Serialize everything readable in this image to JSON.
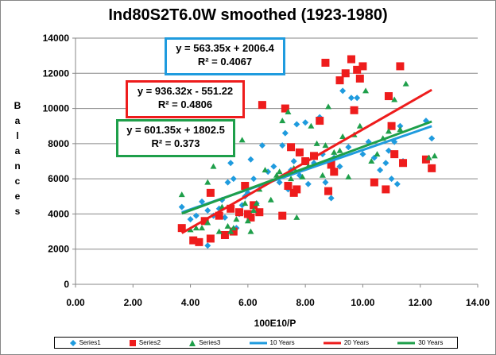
{
  "chart_data": {
    "type": "scatter",
    "title": "Ind80S2T6.0W smoothed (1923-1980)",
    "xlabel": "100E10/P",
    "ylabel": "Balances",
    "xlim": [
      0,
      14
    ],
    "ylim": [
      0,
      14000
    ],
    "x_ticks": [
      "0.00",
      "2.00",
      "4.00",
      "6.00",
      "8.00",
      "10.00",
      "12.00",
      "14.00"
    ],
    "y_ticks": [
      "0",
      "2000",
      "4000",
      "6000",
      "8000",
      "10000",
      "12000",
      "14000"
    ],
    "grid": true,
    "legend": "bottom",
    "series": [
      {
        "name": "Series1",
        "marker": "diamond",
        "color": "#1f9bde",
        "points": [
          [
            3.7,
            4400
          ],
          [
            4.0,
            3700
          ],
          [
            4.2,
            3900
          ],
          [
            4.4,
            4700
          ],
          [
            4.6,
            4200
          ],
          [
            4.8,
            3900
          ],
          [
            5.0,
            4300
          ],
          [
            5.1,
            4800
          ],
          [
            5.3,
            5800
          ],
          [
            5.4,
            6900
          ],
          [
            5.5,
            6000
          ],
          [
            5.6,
            3200
          ],
          [
            5.7,
            4000
          ],
          [
            5.8,
            4500
          ],
          [
            5.9,
            5000
          ],
          [
            6.0,
            5200
          ],
          [
            6.1,
            7100
          ],
          [
            6.2,
            6000
          ],
          [
            6.3,
            4600
          ],
          [
            6.5,
            7900
          ],
          [
            6.7,
            6400
          ],
          [
            6.9,
            6700
          ],
          [
            7.1,
            5800
          ],
          [
            7.2,
            7900
          ],
          [
            7.3,
            8600
          ],
          [
            7.4,
            5400
          ],
          [
            7.5,
            6500
          ],
          [
            7.6,
            7000
          ],
          [
            7.7,
            9100
          ],
          [
            7.8,
            6200
          ],
          [
            8.0,
            9200
          ],
          [
            8.1,
            5700
          ],
          [
            8.3,
            6900
          ],
          [
            8.5,
            9500
          ],
          [
            8.6,
            7400
          ],
          [
            8.7,
            5800
          ],
          [
            8.9,
            4900
          ],
          [
            9.0,
            7200
          ],
          [
            9.2,
            6700
          ],
          [
            9.3,
            11000
          ],
          [
            9.5,
            7800
          ],
          [
            9.6,
            10600
          ],
          [
            9.8,
            10600
          ],
          [
            10.0,
            7400
          ],
          [
            10.2,
            8100
          ],
          [
            10.4,
            7200
          ],
          [
            10.6,
            6500
          ],
          [
            10.8,
            6900
          ],
          [
            10.9,
            7600
          ],
          [
            11.0,
            6000
          ],
          [
            11.1,
            8100
          ],
          [
            11.2,
            5700
          ],
          [
            11.3,
            9000
          ],
          [
            11.4,
            7000
          ],
          [
            12.2,
            9300
          ],
          [
            12.4,
            8300
          ],
          [
            4.6,
            2200
          ],
          [
            5.2,
            3800
          ]
        ]
      },
      {
        "name": "Series2",
        "marker": "square",
        "color": "#ee1c1c",
        "points": [
          [
            3.7,
            3200
          ],
          [
            4.1,
            2500
          ],
          [
            4.3,
            2400
          ],
          [
            4.5,
            3600
          ],
          [
            4.7,
            2600
          ],
          [
            4.7,
            5200
          ],
          [
            5.0,
            3900
          ],
          [
            5.2,
            2800
          ],
          [
            5.4,
            4300
          ],
          [
            5.5,
            3000
          ],
          [
            5.7,
            4100
          ],
          [
            5.9,
            5600
          ],
          [
            6.0,
            4000
          ],
          [
            6.1,
            3800
          ],
          [
            6.2,
            4500
          ],
          [
            6.4,
            4100
          ],
          [
            6.5,
            10200
          ],
          [
            7.2,
            3900
          ],
          [
            7.3,
            10000
          ],
          [
            7.4,
            5600
          ],
          [
            7.5,
            7800
          ],
          [
            7.6,
            5200
          ],
          [
            7.7,
            5400
          ],
          [
            7.8,
            7500
          ],
          [
            8.0,
            7000
          ],
          [
            8.3,
            7300
          ],
          [
            8.5,
            9300
          ],
          [
            8.7,
            12600
          ],
          [
            8.8,
            5300
          ],
          [
            8.9,
            6800
          ],
          [
            9.0,
            6400
          ],
          [
            9.2,
            11600
          ],
          [
            9.4,
            12000
          ],
          [
            9.6,
            12800
          ],
          [
            9.7,
            9900
          ],
          [
            9.8,
            12200
          ],
          [
            9.9,
            11700
          ],
          [
            10.0,
            12400
          ],
          [
            10.4,
            5800
          ],
          [
            10.8,
            5400
          ],
          [
            10.9,
            10700
          ],
          [
            11.0,
            9000
          ],
          [
            11.1,
            7400
          ],
          [
            11.3,
            12400
          ],
          [
            11.4,
            6900
          ],
          [
            12.2,
            7100
          ],
          [
            12.4,
            6600
          ]
        ]
      },
      {
        "name": "Series3",
        "marker": "triangle",
        "color": "#1e9f4a",
        "points": [
          [
            3.7,
            5100
          ],
          [
            4.0,
            3100
          ],
          [
            4.2,
            3200
          ],
          [
            4.4,
            3200
          ],
          [
            4.6,
            3500
          ],
          [
            4.8,
            6700
          ],
          [
            5.0,
            3000
          ],
          [
            5.1,
            4400
          ],
          [
            5.3,
            3300
          ],
          [
            5.4,
            3000
          ],
          [
            5.5,
            3200
          ],
          [
            5.6,
            3700
          ],
          [
            5.9,
            4600
          ],
          [
            6.0,
            3600
          ],
          [
            6.1,
            3000
          ],
          [
            6.2,
            4200
          ],
          [
            6.3,
            4600
          ],
          [
            6.4,
            5400
          ],
          [
            6.6,
            6500
          ],
          [
            6.8,
            4800
          ],
          [
            7.0,
            6200
          ],
          [
            7.1,
            6400
          ],
          [
            7.2,
            9300
          ],
          [
            7.4,
            9800
          ],
          [
            7.5,
            6000
          ],
          [
            7.6,
            6600
          ],
          [
            7.7,
            3800
          ],
          [
            7.9,
            6100
          ],
          [
            8.1,
            6700
          ],
          [
            8.2,
            9000
          ],
          [
            8.4,
            8000
          ],
          [
            8.6,
            6200
          ],
          [
            8.7,
            7900
          ],
          [
            8.8,
            10100
          ],
          [
            9.0,
            7500
          ],
          [
            9.2,
            7600
          ],
          [
            9.3,
            8400
          ],
          [
            9.5,
            6100
          ],
          [
            9.7,
            8500
          ],
          [
            9.9,
            9000
          ],
          [
            10.1,
            11000
          ],
          [
            10.3,
            7000
          ],
          [
            10.5,
            7400
          ],
          [
            10.7,
            8300
          ],
          [
            10.9,
            8700
          ],
          [
            11.1,
            10500
          ],
          [
            11.3,
            8800
          ],
          [
            11.5,
            11400
          ],
          [
            12.3,
            7200
          ],
          [
            12.5,
            7300
          ],
          [
            4.6,
            5800
          ],
          [
            5.8,
            8200
          ]
        ]
      }
    ],
    "trendlines": [
      {
        "name": "10 Years",
        "color": "#1f9bde",
        "slope": 563.35,
        "intercept": 2006.4,
        "equation": "y = 563.35x + 2006.4",
        "r2": "R² = 0.4067"
      },
      {
        "name": "20 Years",
        "color": "#ee1c1c",
        "slope": 936.32,
        "intercept": -551.22,
        "equation": "y = 936.32x - 551.22",
        "r2": "R² = 0.4806"
      },
      {
        "name": "30 Years",
        "color": "#1e9f4a",
        "slope": 601.35,
        "intercept": 1802.5,
        "equation": "y = 601.35x + 1802.5",
        "r2": "R² = 0.373"
      }
    ],
    "trend_x_range": [
      3.7,
      12.4
    ]
  }
}
